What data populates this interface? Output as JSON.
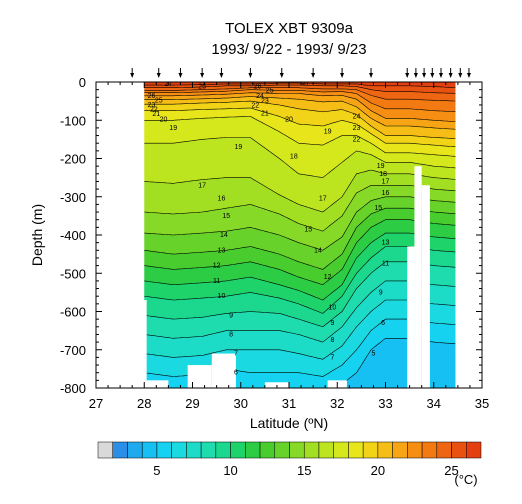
{
  "chart_data": {
    "type": "heatmap",
    "title": "TOLEX XBT 9309a",
    "subtitle": "1993/ 9/22 - 1993/ 9/23",
    "xlabel": "Latitude (ºN)",
    "ylabel": "Depth (m)",
    "xlim": [
      27,
      35
    ],
    "ylim": [
      -800,
      0
    ],
    "x_ticks": [
      "27",
      "28",
      "29",
      "30",
      "31",
      "32",
      "33",
      "34",
      "35"
    ],
    "y_ticks": [
      "0",
      "-100",
      "-200",
      "-300",
      "-400",
      "-500",
      "-600",
      "-700",
      "-800"
    ],
    "station_latitudes": [
      27.75,
      28.3,
      28.75,
      29.2,
      29.6,
      30.2,
      30.85,
      31.5,
      32.1,
      32.7,
      33.45,
      33.63,
      33.8,
      33.97,
      34.15,
      34.35,
      34.55,
      34.73
    ],
    "colorbar": {
      "min": 2,
      "max": 28,
      "step": 1,
      "tick_labels": [
        "5",
        "10",
        "15",
        "20",
        "25"
      ],
      "unit": "(°C)",
      "colors": [
        "#d9d9d9",
        "#2b8fe8",
        "#1fa9ee",
        "#17c0f3",
        "#15d3f0",
        "#1ad9e0",
        "#1cdcc8",
        "#1edcae",
        "#1bd88e",
        "#1ed36a",
        "#2ccd45",
        "#49cc2e",
        "#67d22a",
        "#86d926",
        "#a2df22",
        "#bde51f",
        "#d5e81c",
        "#e8e61a",
        "#f1d417",
        "#f6bd16",
        "#f7a515",
        "#f68e14",
        "#f37a13",
        "#ee6512",
        "#e95111",
        "#e43f10"
      ]
    },
    "isotherm_labels": [
      "27",
      "26",
      "25",
      "24",
      "23",
      "22",
      "21",
      "20",
      "19",
      "18",
      "17",
      "16",
      "15",
      "14",
      "13",
      "12",
      "11",
      "10",
      "9",
      "8",
      "7",
      "6",
      "5"
    ],
    "isotherm_profiles": [
      {
        "lat": 28.0,
        "depths": [
          0,
          8,
          15,
          22,
          28,
          36,
          46,
          58,
          75,
          100,
          160,
          260,
          340,
          395,
          440,
          480,
          520,
          560,
          610,
          660,
          710,
          760,
          800
        ]
      },
      {
        "lat": 28.6,
        "depths": [
          0,
          8,
          15,
          22,
          28,
          36,
          46,
          58,
          75,
          100,
          160,
          265,
          345,
          400,
          450,
          490,
          530,
          570,
          620,
          670,
          720,
          770,
          810
        ]
      },
      {
        "lat": 29.2,
        "depths": [
          0,
          7,
          13,
          20,
          26,
          34,
          44,
          55,
          72,
          95,
          150,
          255,
          340,
          395,
          445,
          485,
          525,
          565,
          615,
          665,
          715,
          765,
          810
        ]
      },
      {
        "lat": 29.7,
        "depths": [
          0,
          5,
          10,
          18,
          24,
          32,
          42,
          53,
          70,
          92,
          145,
          250,
          330,
          390,
          440,
          480,
          520,
          560,
          605,
          650,
          700,
          750,
          800
        ]
      },
      {
        "lat": 30.2,
        "depths": [
          0,
          5,
          10,
          15,
          20,
          28,
          38,
          50,
          68,
          90,
          145,
          250,
          320,
          380,
          430,
          470,
          510,
          550,
          600,
          650,
          700,
          760,
          810
        ]
      },
      {
        "lat": 30.8,
        "depths": [
          0,
          3,
          8,
          15,
          22,
          30,
          42,
          60,
          90,
          130,
          200,
          295,
          345,
          400,
          450,
          490,
          530,
          565,
          605,
          650,
          700,
          760,
          810
        ]
      },
      {
        "lat": 31.2,
        "depths": [
          0,
          3,
          8,
          15,
          22,
          30,
          45,
          70,
          110,
          160,
          240,
          320,
          370,
          420,
          470,
          510,
          545,
          580,
          620,
          660,
          710,
          760,
          810
        ]
      },
      {
        "lat": 31.7,
        "depths": [
          0,
          5,
          10,
          18,
          26,
          36,
          52,
          78,
          115,
          165,
          250,
          340,
          390,
          440,
          490,
          530,
          570,
          605,
          640,
          680,
          725,
          770,
          810
        ]
      },
      {
        "lat": 32.1,
        "depths": [
          0,
          5,
          10,
          18,
          25,
          35,
          50,
          72,
          100,
          140,
          210,
          300,
          350,
          405,
          450,
          490,
          530,
          560,
          600,
          640,
          690,
          740,
          790
        ]
      },
      {
        "lat": 32.4,
        "depths": [
          0,
          5,
          12,
          20,
          30,
          45,
          65,
          85,
          110,
          140,
          180,
          240,
          290,
          340,
          380,
          420,
          460,
          500,
          540,
          590,
          640,
          700,
          760
        ]
      },
      {
        "lat": 32.7,
        "depths": [
          0,
          10,
          20,
          35,
          55,
          75,
          95,
          115,
          135,
          160,
          190,
          230,
          270,
          310,
          345,
          380,
          420,
          460,
          500,
          550,
          600,
          650,
          700
        ]
      },
      {
        "lat": 33.0,
        "depths": [
          0,
          10,
          25,
          45,
          70,
          95,
          115,
          140,
          160,
          185,
          210,
          240,
          270,
          300,
          330,
          360,
          395,
          430,
          470,
          520,
          570,
          620,
          670
        ]
      },
      {
        "lat": 33.5,
        "depths": [
          0,
          10,
          25,
          45,
          70,
          95,
          115,
          140,
          160,
          185,
          210,
          240,
          270,
          300,
          330,
          360,
          395,
          430,
          470,
          520,
          570,
          620,
          670
        ]
      },
      {
        "lat": 34.0,
        "depths": [
          0,
          12,
          28,
          48,
          75,
          100,
          120,
          145,
          165,
          190,
          220,
          250,
          280,
          310,
          340,
          370,
          405,
          440,
          480,
          530,
          580,
          630,
          680
        ]
      },
      {
        "lat": 34.5,
        "depths": [
          0,
          15,
          30,
          50,
          78,
          104,
          124,
          148,
          170,
          195,
          225,
          255,
          285,
          315,
          345,
          375,
          410,
          445,
          485,
          535,
          585,
          635,
          685
        ]
      }
    ],
    "contour_label_positions": [
      {
        "text": "26",
        "lat": 28.15,
        "depth": 36
      },
      {
        "text": "25",
        "lat": 28.3,
        "depth": 48
      },
      {
        "text": "23",
        "lat": 28.15,
        "depth": 60
      },
      {
        "text": "22",
        "lat": 28.2,
        "depth": 72
      },
      {
        "text": "21",
        "lat": 28.25,
        "depth": 84
      },
      {
        "text": "20",
        "lat": 28.4,
        "depth": 98
      },
      {
        "text": "19",
        "lat": 28.6,
        "depth": 120
      },
      {
        "text": "27",
        "lat": 28.5,
        "depth": 5
      },
      {
        "text": "26",
        "lat": 29.2,
        "depth": 12
      },
      {
        "text": "27",
        "lat": 31.35,
        "depth": 3
      },
      {
        "text": "26",
        "lat": 30.35,
        "depth": 12
      },
      {
        "text": "25",
        "lat": 30.6,
        "depth": 22
      },
      {
        "text": "24",
        "lat": 30.4,
        "depth": 36
      },
      {
        "text": "23",
        "lat": 30.5,
        "depth": 50
      },
      {
        "text": "22",
        "lat": 30.3,
        "depth": 62
      },
      {
        "text": "21",
        "lat": 30.5,
        "depth": 82
      },
      {
        "text": "20",
        "lat": 31.0,
        "depth": 98
      },
      {
        "text": "19",
        "lat": 31.8,
        "depth": 130
      },
      {
        "text": "19",
        "lat": 29.95,
        "depth": 170
      },
      {
        "text": "18",
        "lat": 31.1,
        "depth": 195
      },
      {
        "text": "17",
        "lat": 29.2,
        "depth": 270
      },
      {
        "text": "17",
        "lat": 31.7,
        "depth": 305
      },
      {
        "text": "16",
        "lat": 29.6,
        "depth": 305
      },
      {
        "text": "15",
        "lat": 29.7,
        "depth": 350
      },
      {
        "text": "15",
        "lat": 31.4,
        "depth": 385
      },
      {
        "text": "14",
        "lat": 29.65,
        "depth": 400
      },
      {
        "text": "14",
        "lat": 31.6,
        "depth": 440
      },
      {
        "text": "13",
        "lat": 29.6,
        "depth": 440
      },
      {
        "text": "12",
        "lat": 29.5,
        "depth": 480
      },
      {
        "text": "12",
        "lat": 31.8,
        "depth": 510
      },
      {
        "text": "11",
        "lat": 29.5,
        "depth": 520
      },
      {
        "text": "10",
        "lat": 29.6,
        "depth": 560
      },
      {
        "text": "10",
        "lat": 31.9,
        "depth": 590
      },
      {
        "text": "9",
        "lat": 29.8,
        "depth": 610
      },
      {
        "text": "8",
        "lat": 29.8,
        "depth": 660
      },
      {
        "text": "7",
        "lat": 29.9,
        "depth": 710
      },
      {
        "text": "7",
        "lat": 31.9,
        "depth": 720
      },
      {
        "text": "6",
        "lat": 29.9,
        "depth": 760
      },
      {
        "text": "8",
        "lat": 31.9,
        "depth": 675
      },
      {
        "text": "9",
        "lat": 31.9,
        "depth": 630
      },
      {
        "text": "24",
        "lat": 32.4,
        "depth": 90
      },
      {
        "text": "23",
        "lat": 32.4,
        "depth": 120
      },
      {
        "text": "22",
        "lat": 32.4,
        "depth": 150
      },
      {
        "text": "19",
        "lat": 32.9,
        "depth": 220
      },
      {
        "text": "18",
        "lat": 32.95,
        "depth": 240
      },
      {
        "text": "17",
        "lat": 33.0,
        "depth": 260
      },
      {
        "text": "16",
        "lat": 33.0,
        "depth": 290
      },
      {
        "text": "15",
        "lat": 32.85,
        "depth": 330
      },
      {
        "text": "13",
        "lat": 33.0,
        "depth": 420
      },
      {
        "text": "11",
        "lat": 33.0,
        "depth": 475
      },
      {
        "text": "9",
        "lat": 32.9,
        "depth": 550
      },
      {
        "text": "6",
        "lat": 32.95,
        "depth": 630
      },
      {
        "text": "5",
        "lat": 32.75,
        "depth": 710
      }
    ],
    "no_data_regions": [
      {
        "from_lat": 27.0,
        "to_lat": 28.0,
        "from_depth": 0,
        "to_depth": 800
      },
      {
        "from_lat": 27.0,
        "to_lat": 28.05,
        "from_depth": 570,
        "to_depth": 800
      },
      {
        "from_lat": 28.0,
        "to_lat": 28.5,
        "from_depth": 780,
        "to_depth": 800
      },
      {
        "from_lat": 28.9,
        "to_lat": 29.4,
        "from_depth": 740,
        "to_depth": 800
      },
      {
        "from_lat": 29.4,
        "to_lat": 29.9,
        "from_depth": 710,
        "to_depth": 800
      },
      {
        "from_lat": 30.5,
        "to_lat": 31.0,
        "from_depth": 785,
        "to_depth": 800
      },
      {
        "from_lat": 31.8,
        "to_lat": 32.2,
        "from_depth": 780,
        "to_depth": 800
      },
      {
        "from_lat": 33.45,
        "to_lat": 33.6,
        "from_depth": 430,
        "to_depth": 800
      },
      {
        "from_lat": 33.6,
        "to_lat": 33.75,
        "from_depth": 220,
        "to_depth": 800
      },
      {
        "from_lat": 33.75,
        "to_lat": 33.92,
        "from_depth": 270,
        "to_depth": 800
      },
      {
        "from_lat": 34.45,
        "to_lat": 35.0,
        "from_depth": 0,
        "to_depth": 800
      }
    ]
  }
}
